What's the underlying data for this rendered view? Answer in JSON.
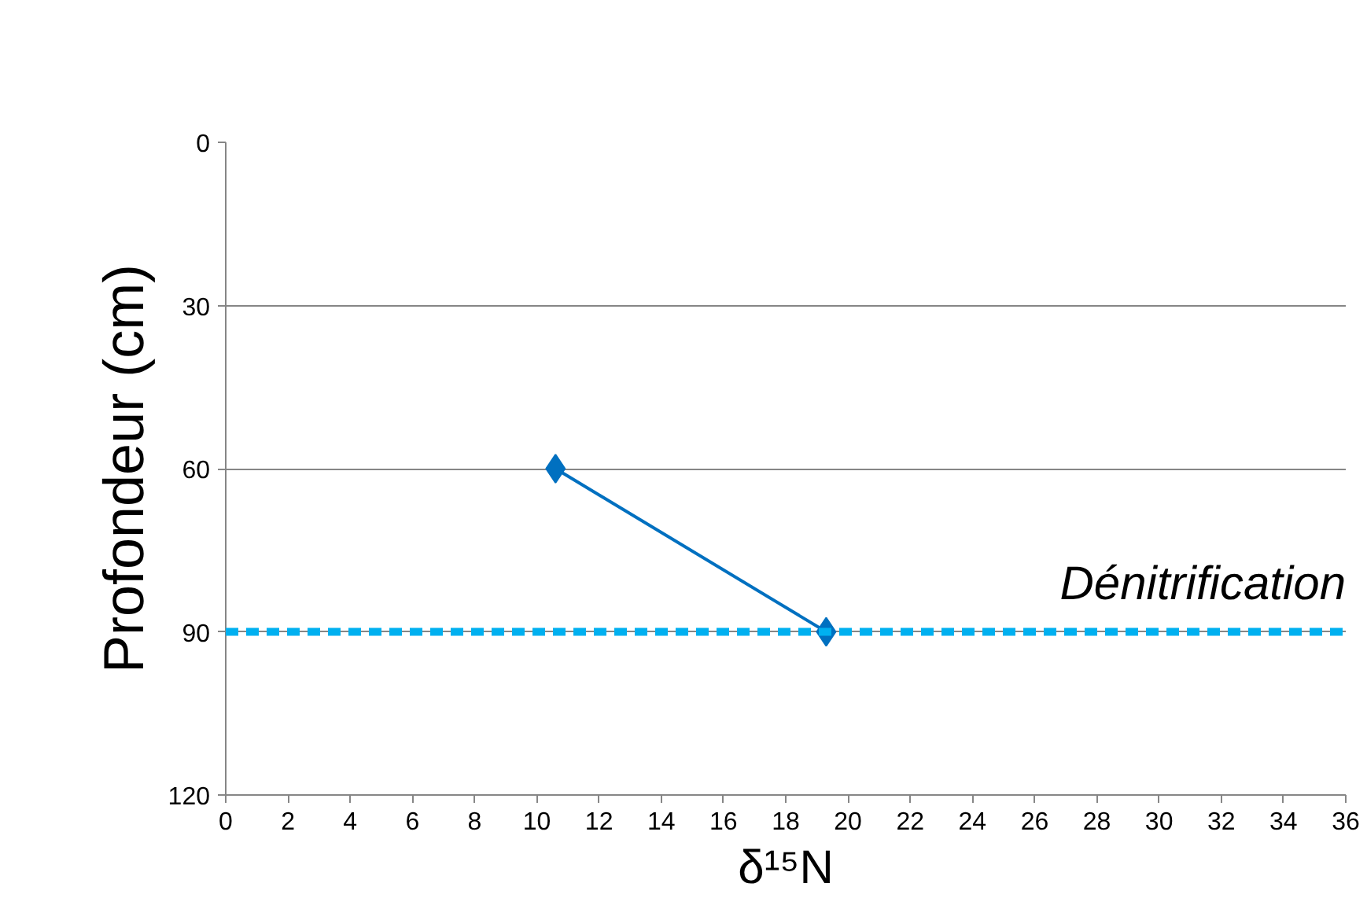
{
  "chart_data": {
    "type": "line",
    "xlabel": "δ¹⁵N",
    "ylabel": "Profondeur (cm)",
    "x": [
      10.6,
      19.3
    ],
    "series": [
      {
        "color": "#0070c0",
        "values": [
          60,
          90
        ]
      }
    ],
    "xlim": [
      0,
      36
    ],
    "xticks": [
      0,
      2,
      4,
      6,
      8,
      10,
      12,
      14,
      16,
      18,
      20,
      22,
      24,
      26,
      28,
      30,
      32,
      34,
      36
    ],
    "ylim": [
      120,
      0
    ],
    "yticks": [
      0,
      30,
      60,
      90,
      120
    ],
    "grid": "y",
    "marker": "diamond",
    "line_style": "solid",
    "ref_lines": [
      {
        "axis": "y",
        "value": 90,
        "label": "Dénitrification",
        "color": "#00b0f0",
        "line_style": "dashed"
      }
    ]
  }
}
